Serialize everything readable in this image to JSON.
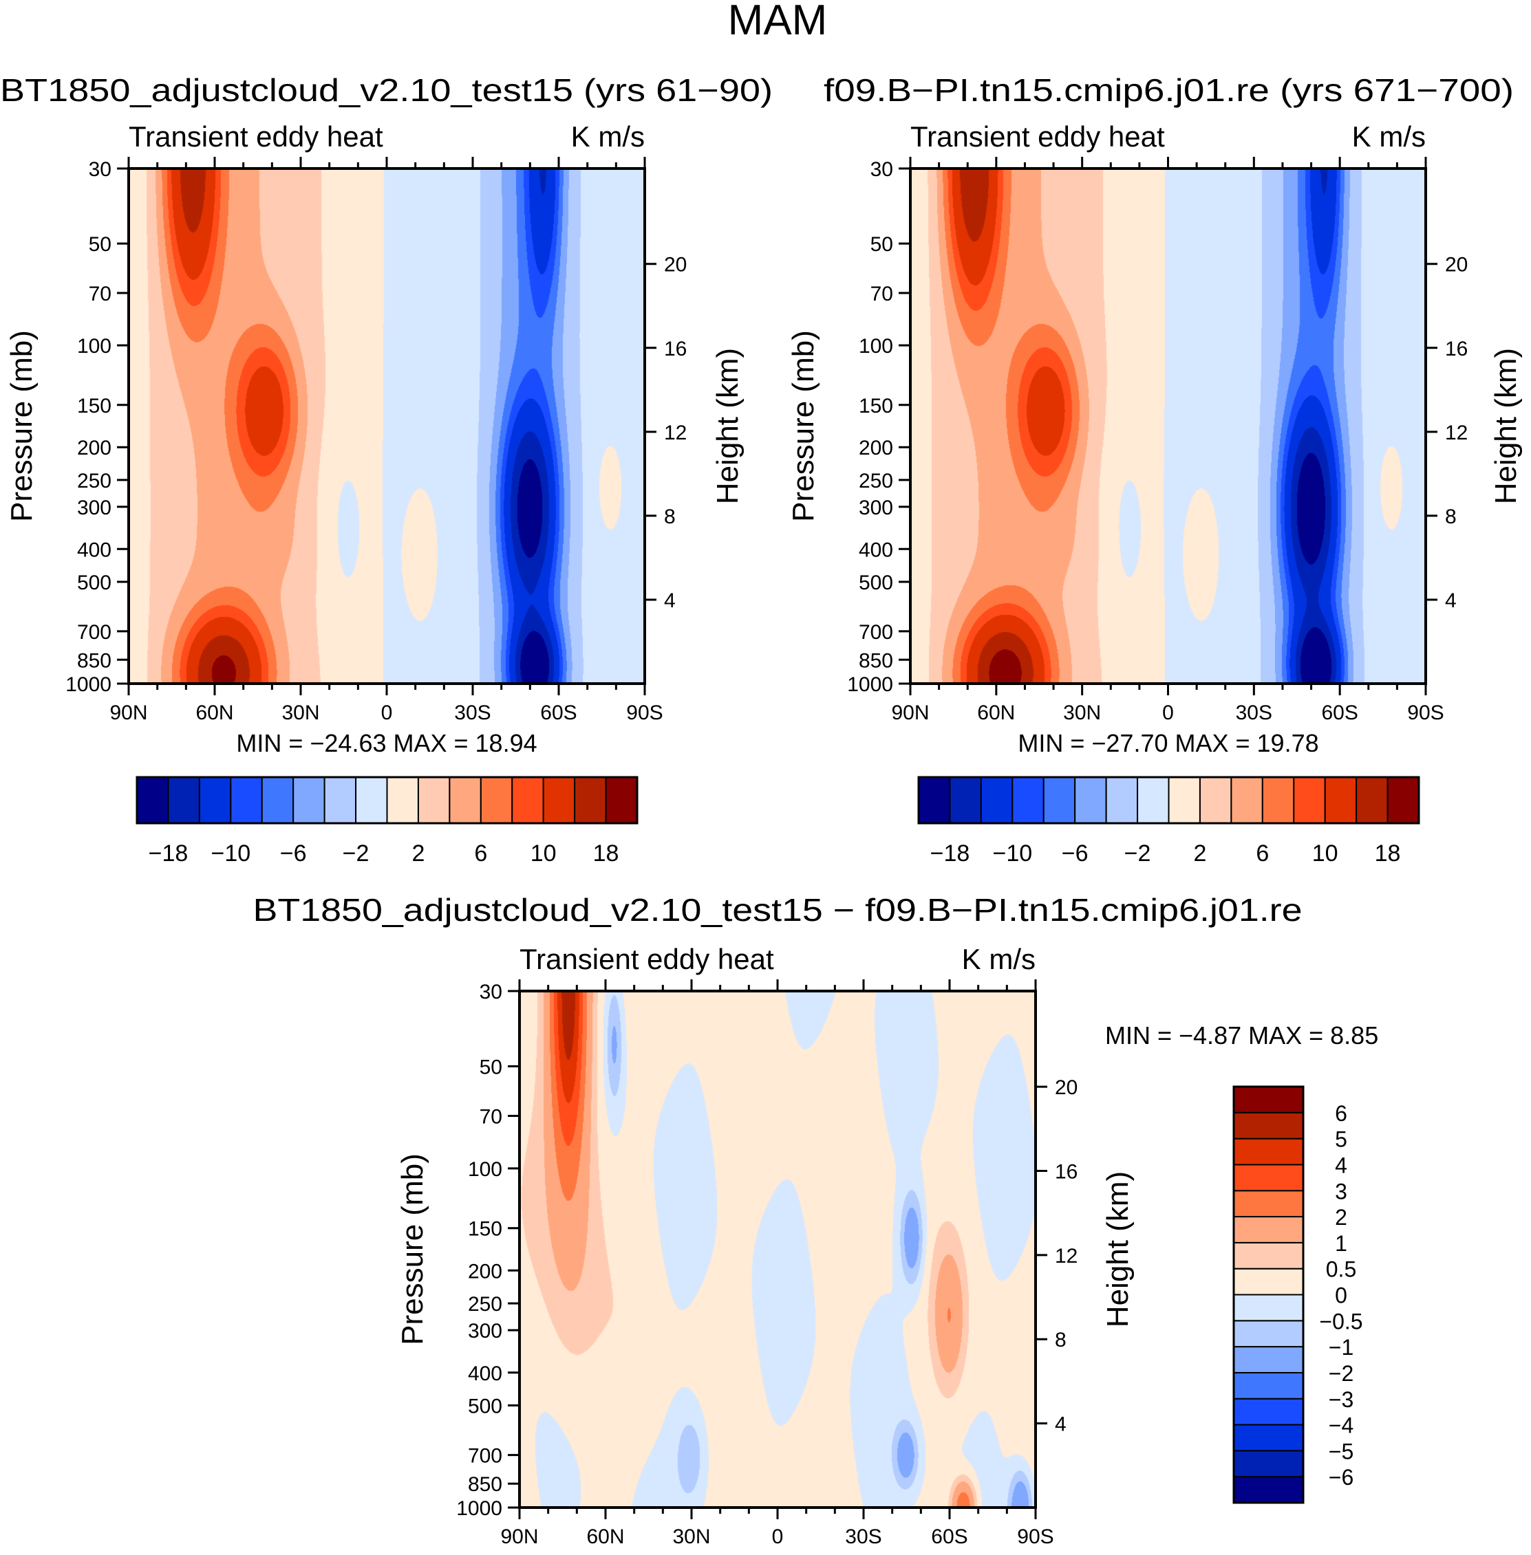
{
  "chart_data": [
    {
      "type": "heatmap",
      "title": "BT1850_adjustcloud_v2.10_test15 (yrs 61−90)",
      "left_string": "Transient eddy heat",
      "right_string": "K m/s",
      "ylabel": "Pressure (mb)",
      "ylabel_right": "Height (km)",
      "minmax": "MIN =  −24.63   MAX =   18.94",
      "min": -24.63,
      "max": 18.94,
      "levels": [
        -18,
        -14,
        -10,
        -8,
        -6,
        -4,
        -2,
        0,
        2,
        4,
        6,
        8,
        10,
        14,
        18
      ],
      "colorbar_labels": [
        "−18",
        "−10",
        "−6",
        "−2",
        "2",
        "6",
        "10",
        "18"
      ]
    },
    {
      "type": "heatmap",
      "title": "f09.B−PI.tn15.cmip6.j01.re (yrs 671−700)",
      "left_string": "Transient eddy heat",
      "right_string": "K m/s",
      "ylabel": "Pressure (mb)",
      "ylabel_right": "Height (km)",
      "minmax": "MIN =  −27.70   MAX =   19.78",
      "min": -27.7,
      "max": 19.78,
      "levels": [
        -18,
        -14,
        -10,
        -8,
        -6,
        -4,
        -2,
        0,
        2,
        4,
        6,
        8,
        10,
        14,
        18
      ],
      "colorbar_labels": [
        "−18",
        "−10",
        "−6",
        "−2",
        "2",
        "6",
        "10",
        "18"
      ]
    },
    {
      "type": "heatmap",
      "title": "BT1850_adjustcloud_v2.10_test15 − f09.B−PI.tn15.cmip6.j01.re",
      "left_string": "Transient eddy heat",
      "right_string": "K m/s",
      "ylabel": "Pressure (mb)",
      "ylabel_right": "Height (km)",
      "minmax": "MIN =   −4.87   MAX =    8.85",
      "min": -4.87,
      "max": 8.85,
      "levels": [
        -6,
        -5,
        -4,
        -3,
        -2,
        -1,
        -0.5,
        0,
        0.5,
        1,
        2,
        3,
        4,
        5,
        6
      ],
      "colorbar_labels": [
        "−6",
        "−5",
        "−4",
        "−3",
        "−2",
        "−1",
        "−0.5",
        "0",
        "0.5",
        "1",
        "2",
        "3",
        "4",
        "5",
        "6"
      ]
    }
  ],
  "figure_title": "MAM",
  "x_ticks": {
    "values": [
      90,
      60,
      30,
      0,
      -30,
      -60,
      -90
    ],
    "labels": [
      "90N",
      "60N",
      "30N",
      "0",
      "30S",
      "60S",
      "90S"
    ]
  },
  "pressure_ticks": {
    "values": [
      30,
      50,
      70,
      100,
      150,
      200,
      250,
      300,
      400,
      500,
      700,
      850,
      1000
    ],
    "labels": [
      "30",
      "50",
      "70",
      "100",
      "150",
      "200",
      "250",
      "300",
      "400",
      "500",
      "700",
      "850",
      "1000"
    ]
  },
  "height_ticks": {
    "values": [
      4,
      8,
      12,
      16,
      20
    ],
    "labels": [
      "4",
      "8",
      "12",
      "16",
      "20"
    ]
  },
  "pressure_range": [
    30,
    1000
  ],
  "lat_range": [
    90,
    -90
  ],
  "colors": [
    "#000088",
    "#0022b4",
    "#0033e0",
    "#1a4cff",
    "#4077ff",
    "#80a8ff",
    "#b3ccff",
    "#d6e8ff",
    "#ffebd6",
    "#ffccb3",
    "#ffa880",
    "#ff7740",
    "#ff4c1a",
    "#e03300",
    "#b32200",
    "#880000"
  ]
}
